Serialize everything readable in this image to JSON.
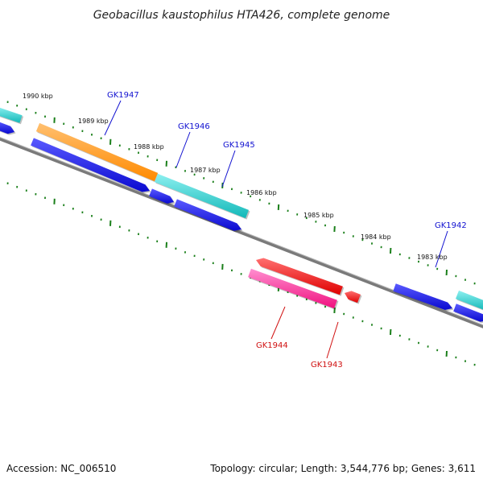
{
  "title": "Geobacillus kaustophilus HTA426, complete genome",
  "footer": {
    "accession": "Accession: NC_006510",
    "summary": "Topology: circular; Length: 3,544,776 bp; Genes: 3,611"
  },
  "kbp_labels": [
    "1990 kbp",
    "1989 kbp",
    "1988 kbp",
    "1987 kbp",
    "1986 kbp",
    "1985 kbp",
    "1984 kbp",
    "1983 kbp"
  ],
  "gene_labels": [
    {
      "name": "GK1947",
      "strand": "forward"
    },
    {
      "name": "GK1946",
      "strand": "forward"
    },
    {
      "name": "GK1945",
      "strand": "forward"
    },
    {
      "name": "GK1942",
      "strand": "forward"
    },
    {
      "name": "GK1944",
      "strand": "reverse"
    },
    {
      "name": "GK1943",
      "strand": "reverse"
    }
  ],
  "colors": {
    "backbone": "#7f7f7f",
    "tick": "#1a7f1a",
    "cds_blue": "#1010e0",
    "orange": "#ff9416",
    "cyan": "#26cccc",
    "red": "#ff1010",
    "pink": "#ff2fa5",
    "label_forward": "#1010d0",
    "label_reverse": "#d01010"
  }
}
